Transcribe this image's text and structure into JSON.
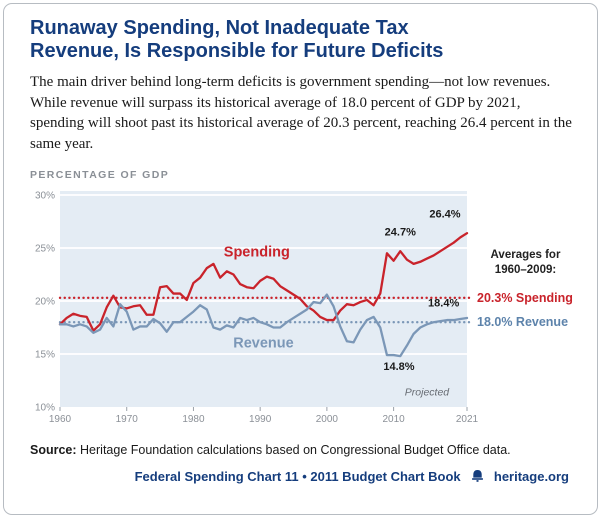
{
  "header": {
    "title_lines": [
      "Runaway Spending, Not Inadequate Tax",
      "Revenue, Is Responsible for Future Deficits"
    ],
    "description": "The main driver behind long-term deficits is government spending—not low revenues. While revenue will surpass its historical average of 18.0 percent of GDP by 2021, spending will shoot past its historical average of 20.3 percent, reaching 26.4 percent in the same year."
  },
  "chart": {
    "heading": "PERCENTAGE OF GDP"
  },
  "legend": {
    "title_lines": [
      "Averages for",
      "1960–2009:"
    ],
    "spending_avg": "20.3% Spending",
    "revenue_avg": "18.0% Revenue"
  },
  "colors": {
    "navy": "#153d7d",
    "spending_red": "#c9232b",
    "revenue_blue": "#7b97b7",
    "revenue_text_blue": "#5d83ab",
    "plot_bg": "#e4ecf4",
    "tick_gray": "#8b9097"
  },
  "chart_data": {
    "type": "line",
    "title": "Percentage of GDP",
    "xlim": [
      1960,
      2021
    ],
    "ylim": [
      10,
      30
    ],
    "grid": true,
    "x": [
      1960,
      1961,
      1962,
      1963,
      1964,
      1965,
      1966,
      1967,
      1968,
      1969,
      1970,
      1971,
      1972,
      1973,
      1974,
      1975,
      1976,
      1977,
      1978,
      1979,
      1980,
      1981,
      1982,
      1983,
      1984,
      1985,
      1986,
      1987,
      1988,
      1989,
      1990,
      1991,
      1992,
      1993,
      1994,
      1995,
      1996,
      1997,
      1998,
      1999,
      2000,
      2001,
      2002,
      2003,
      2004,
      2005,
      2006,
      2007,
      2008,
      2009,
      2010,
      2011,
      2012,
      2013,
      2014,
      2015,
      2016,
      2017,
      2018,
      2019,
      2020,
      2021
    ],
    "series": [
      {
        "name": "Spending",
        "color": "#c9232b",
        "label_pos": [
          1989.5,
          24.2
        ],
        "values": [
          17.8,
          18.4,
          18.8,
          18.6,
          18.5,
          17.2,
          17.8,
          19.4,
          20.5,
          19.4,
          19.3,
          19.5,
          19.6,
          18.7,
          18.7,
          21.3,
          21.4,
          20.7,
          20.7,
          20.1,
          21.7,
          22.2,
          23.1,
          23.5,
          22.2,
          22.8,
          22.5,
          21.6,
          21.3,
          21.2,
          21.9,
          22.3,
          22.1,
          21.4,
          21.0,
          20.6,
          20.2,
          19.5,
          19.1,
          18.5,
          18.2,
          18.2,
          19.1,
          19.7,
          19.6,
          19.9,
          20.1,
          19.6,
          20.7,
          24.5,
          23.8,
          24.7,
          23.9,
          23.5,
          23.7,
          24.0,
          24.3,
          24.7,
          25.1,
          25.5,
          26.0,
          26.4
        ]
      },
      {
        "name": "Revenue",
        "color": "#7b97b7",
        "label_pos": [
          1990.5,
          15.6
        ],
        "values": [
          17.8,
          17.8,
          17.6,
          17.8,
          17.6,
          17.0,
          17.3,
          18.4,
          17.6,
          19.7,
          19.0,
          17.3,
          17.6,
          17.6,
          18.3,
          17.9,
          17.1,
          18.0,
          18.0,
          18.5,
          19.0,
          19.6,
          19.2,
          17.5,
          17.3,
          17.7,
          17.5,
          18.4,
          18.2,
          18.4,
          18.0,
          17.8,
          17.5,
          17.5,
          18.0,
          18.4,
          18.8,
          19.2,
          19.9,
          19.8,
          20.6,
          19.5,
          17.6,
          16.2,
          16.1,
          17.3,
          18.2,
          18.5,
          17.5,
          14.9,
          14.9,
          14.8,
          15.8,
          16.9,
          17.5,
          17.8,
          18.0,
          18.1,
          18.2,
          18.2,
          18.3,
          18.4
        ]
      }
    ],
    "reference_lines": [
      {
        "label": "20.3% Spending",
        "value": 20.3,
        "color": "#c9232b"
      },
      {
        "label": "18.0% Revenue",
        "value": 18.0,
        "color": "#7b97b7"
      }
    ],
    "yticks": [
      {
        "value": 10,
        "label": "10%"
      },
      {
        "value": 15,
        "label": "15%"
      },
      {
        "value": 20,
        "label": "20%"
      },
      {
        "value": 25,
        "label": "25%"
      },
      {
        "value": 30,
        "label": "30%"
      }
    ],
    "xticks": [
      1960,
      1970,
      1980,
      1990,
      2000,
      2010,
      2021
    ],
    "annotations": [
      {
        "text": "24.7%",
        "x": 2011,
        "y": 26.2,
        "bold": true
      },
      {
        "text": "26.4%",
        "x": 2017.7,
        "y": 27.9,
        "bold": true
      },
      {
        "text": "18.4%",
        "x": 2017.5,
        "y": 19.5,
        "bold": true
      },
      {
        "text": "14.8%",
        "x": 2010.8,
        "y": 13.5,
        "bold": true
      },
      {
        "text": "Projected",
        "x": 2015,
        "y": 11.1,
        "italic": true,
        "color": "#666b72",
        "size": 10.5
      }
    ],
    "legend_position": "right"
  },
  "source": {
    "label": "Source:",
    "text": " Heritage Foundation calculations based on Congressional Budget Office data."
  },
  "footer": {
    "text": "Federal Spending Chart 11 • 2011 Budget Chart Book",
    "site": "heritage.org"
  }
}
